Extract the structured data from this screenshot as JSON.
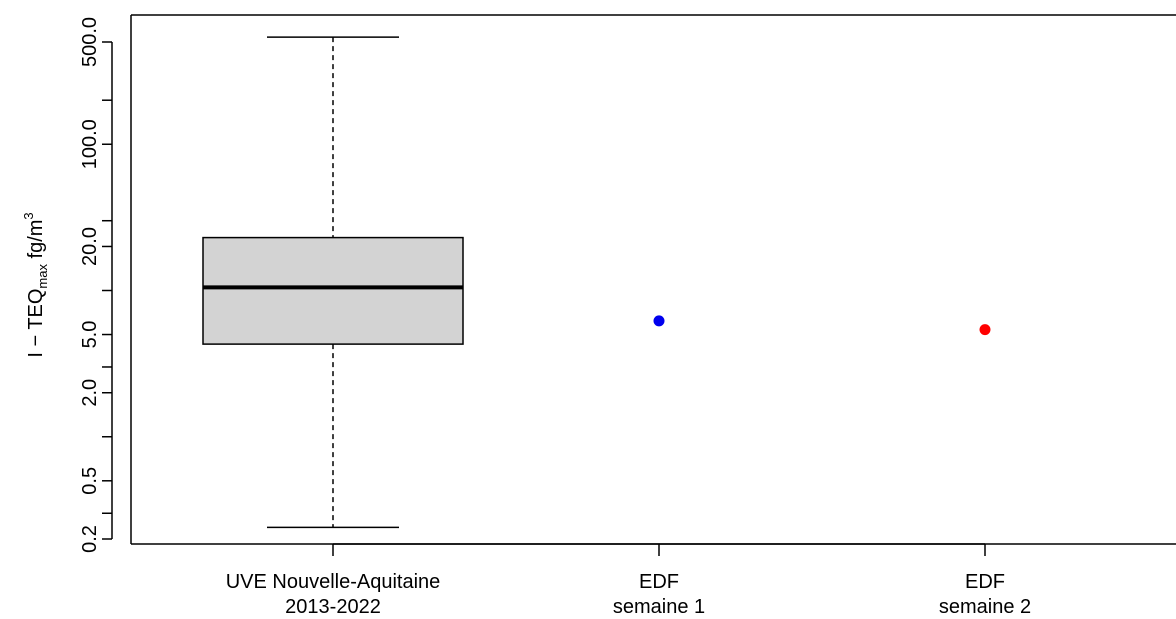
{
  "chart_data": {
    "type": "box",
    "ylabel": {
      "prefix": "I − TEQ",
      "subscript": "max",
      "unit": " fg/m",
      "superscript": "3"
    },
    "yscale": "log",
    "ylim": [
      0.2,
      650
    ],
    "yticks": [
      0.2,
      0.3,
      0.5,
      1,
      2,
      3,
      5,
      10,
      20,
      30,
      100,
      200,
      500
    ],
    "yticklabels": [
      "0.2",
      "",
      "0.5",
      "",
      "2.0",
      "",
      "5.0",
      "",
      "20.0",
      "",
      "100.0",
      "",
      "500.0"
    ],
    "categories": [
      {
        "line1": "UVE Nouvelle-Aquitaine",
        "line2": "2013-2022"
      },
      {
        "line1": "EDF",
        "line2": "semaine 1"
      },
      {
        "line1": "EDF",
        "line2": "semaine 2"
      }
    ],
    "box": {
      "category_index": 0,
      "whisker_low": 0.24,
      "q1": 4.3,
      "median": 10.5,
      "q3": 23,
      "whisker_high": 540,
      "fill": "#d3d3d3"
    },
    "points": [
      {
        "category_index": 1,
        "value": 6.2,
        "color": "#0000ee"
      },
      {
        "category_index": 2,
        "value": 5.4,
        "color": "#ff0000"
      }
    ]
  }
}
